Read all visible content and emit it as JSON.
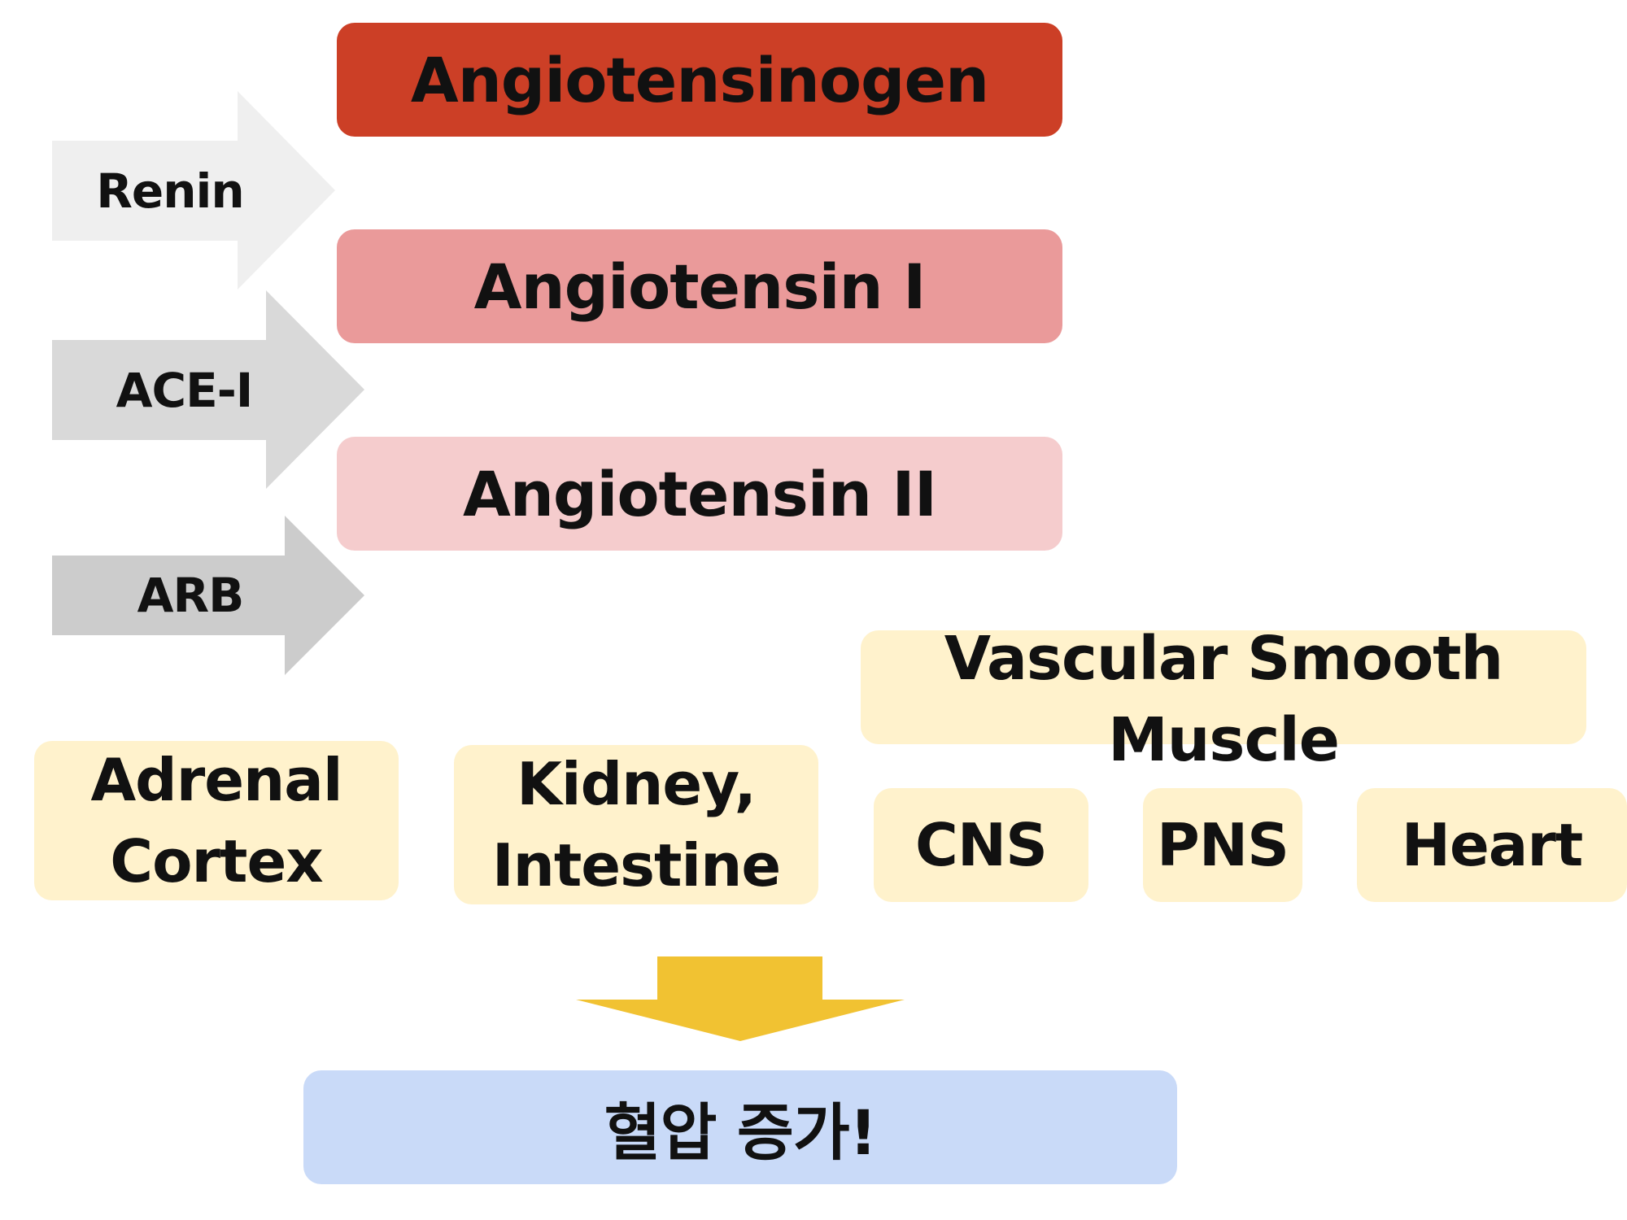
{
  "pathway": {
    "stages": [
      {
        "label": "Angiotensinogen",
        "color": "#cc3f26"
      },
      {
        "label": "Angiotensin I",
        "color": "#ea9a9a"
      },
      {
        "label": "Angiotensin II",
        "color": "#f5cccd"
      }
    ],
    "enzymes": [
      {
        "label": "Renin",
        "color": "#efefef"
      },
      {
        "label": "ACE-I",
        "color": "#d9d9d9"
      },
      {
        "label": "ARB",
        "color": "#cccccc"
      }
    ]
  },
  "targets": {
    "color": "#fff2cc",
    "adrenal": "Adrenal\nCortex",
    "kidney": "Kidney,\nIntestine",
    "vsm": "Vascular Smooth\nMuscle",
    "cns": "CNS",
    "pns": "PNS",
    "heart": "Heart"
  },
  "outcome": {
    "label": "혈압 증가!",
    "color": "#c9daf8",
    "arrow_color": "#f1c232"
  }
}
